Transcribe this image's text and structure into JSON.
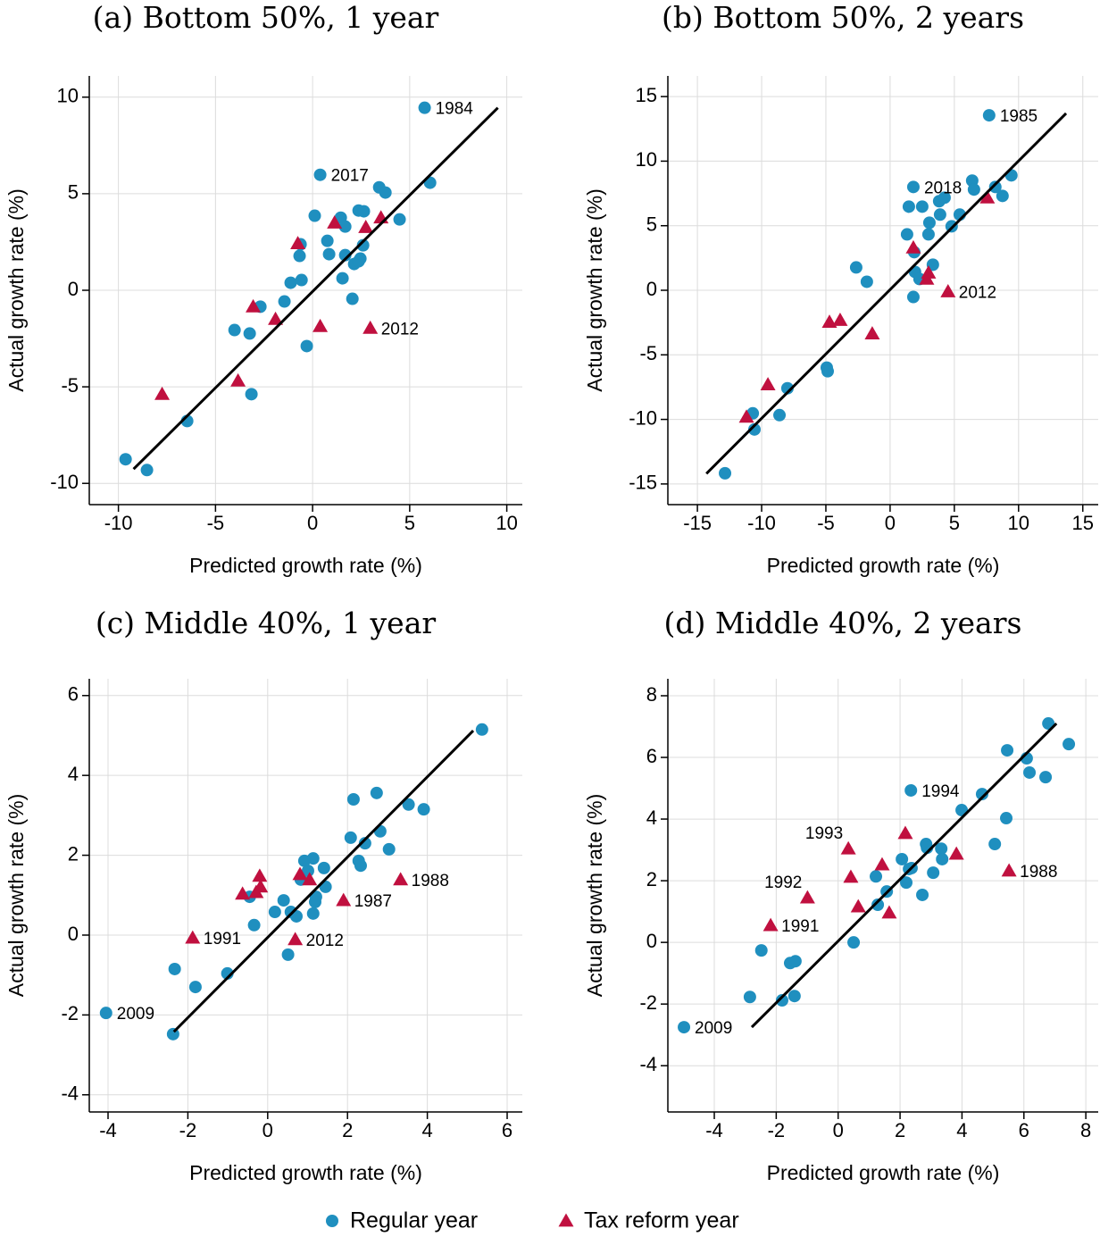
{
  "chart_data": [
    {
      "type": "scatter",
      "title": "(a) Bottom 50%, 1 year",
      "x_label": "Predicted growth rate (%)",
      "y_label": "Actual growth rate (%)",
      "xlim": [
        -11.5,
        10.8
      ],
      "ylim": [
        -11.1,
        11.1
      ],
      "xticks": [
        -10,
        -5,
        0,
        5,
        10
      ],
      "yticks": [
        -10,
        -5,
        0,
        5,
        10
      ],
      "grid": true,
      "series": [
        {
          "color": "#1f8fbf",
          "marker": "circle",
          "x": [
            5.77,
            0.39,
            6.05,
            3.43,
            3.75,
            4.48,
            0.11,
            1.45,
            1.68,
            2.37,
            2.64,
            2.6,
            0.76,
            0.85,
            1.68,
            2.46,
            2.14,
            2.37,
            -0.67,
            -0.62,
            -1.13,
            -0.57,
            1.54,
            2.05,
            -1.45,
            -2.69,
            -4.02,
            -3.24,
            -0.3,
            -3.15,
            -6.46,
            -9.63,
            -8.53
          ],
          "values": [
            9.45,
            5.98,
            5.57,
            5.33,
            5.06,
            3.67,
            3.86,
            3.76,
            3.3,
            4.13,
            4.09,
            2.33,
            2.56,
            1.87,
            1.82,
            1.64,
            1.36,
            1.5,
            1.78,
            2.38,
            0.39,
            0.53,
            0.62,
            -0.44,
            -0.58,
            -0.85,
            -2.06,
            -2.24,
            -2.89,
            -5.38,
            -6.77,
            -8.75,
            -9.31
          ]
        },
        {
          "color": "#c0103f",
          "marker": "triangle",
          "x": [
            -7.75,
            -3.84,
            -3.06,
            -1.91,
            -0.76,
            0.39,
            1.13,
            2.74,
            3.52,
            2.97
          ],
          "values": [
            -5.38,
            -4.69,
            -0.85,
            -1.5,
            2.42,
            -1.87,
            3.49,
            3.26,
            3.76,
            -1.96
          ]
        }
      ],
      "line": {
        "x": [
          -9.22,
          9.54
        ],
        "values": [
          -9.26,
          9.45
        ]
      },
      "annotations": [
        {
          "text": "1984",
          "x": 5.77,
          "y": 9.45
        },
        {
          "text": "2017",
          "x": 0.39,
          "y": 5.98
        },
        {
          "text": "2012",
          "x": 2.97,
          "y": -1.96
        }
      ]
    },
    {
      "type": "scatter",
      "title": "(b) Bottom 50%, 2 years",
      "x_label": "Predicted growth rate (%)",
      "y_label": "Actual growth rate (%)",
      "xlim": [
        -17.3,
        16.2
      ],
      "ylim": [
        -16.6,
        16.6
      ],
      "xticks": [
        -15,
        -10,
        -5,
        0,
        5,
        10,
        15
      ],
      "yticks": [
        -15,
        -10,
        -5,
        0,
        5,
        10,
        15
      ],
      "grid": true,
      "series": [
        {
          "color": "#1f8fbf",
          "marker": "circle",
          "x": [
            7.71,
            9.44,
            8.75,
            8.19,
            6.39,
            6.53,
            5.42,
            4.79,
            2.99,
            3.06,
            3.89,
            3.82,
            4.24,
            2.5,
            1.46,
            1.81,
            1.32,
            1.88,
            3.33,
            1.94,
            2.29,
            1.81,
            -2.64,
            -1.81,
            -4.93,
            -4.86,
            -7.99,
            -8.61,
            -10.69,
            -10.56,
            -12.85
          ],
          "values": [
            13.55,
            8.9,
            7.31,
            8.0,
            8.49,
            7.8,
            5.86,
            4.95,
            4.33,
            5.23,
            5.86,
            6.9,
            7.17,
            6.48,
            6.48,
            8.0,
            4.33,
            2.95,
            1.98,
            1.42,
            0.87,
            -0.52,
            1.77,
            0.66,
            -5.99,
            -6.27,
            -7.59,
            -9.67,
            -9.53,
            -10.78,
            -14.17
          ]
        },
        {
          "color": "#c0103f",
          "marker": "triangle",
          "x": [
            -11.18,
            -9.51,
            -4.72,
            -3.89,
            -1.39,
            1.81,
            2.85,
            2.99,
            4.51,
            7.57
          ],
          "values": [
            -9.81,
            -7.31,
            -2.46,
            -2.32,
            -3.36,
            3.29,
            0.87,
            1.35,
            -0.1,
            7.17
          ]
        }
      ],
      "line": {
        "x": [
          -14.3,
          13.7
        ],
        "values": [
          -14.2,
          13.7
        ]
      },
      "annotations": [
        {
          "text": "1985",
          "x": 7.71,
          "y": 13.55
        },
        {
          "text": "2018",
          "x": 1.81,
          "y": 8.0
        },
        {
          "text": "2012",
          "x": 4.51,
          "y": -0.1
        }
      ]
    },
    {
      "type": "scatter",
      "title": "(c) Middle 40%, 1 year",
      "x_label": "Predicted growth rate (%)",
      "y_label": "Actual growth rate (%)",
      "xlim": [
        -4.47,
        6.38
      ],
      "ylim": [
        -4.43,
        6.42
      ],
      "xticks": [
        -4,
        -2,
        0,
        2,
        4,
        6
      ],
      "yticks": [
        -4,
        -2,
        0,
        2,
        4,
        6
      ],
      "grid": true,
      "series": [
        {
          "color": "#1f8fbf",
          "marker": "circle",
          "x": [
            5.37,
            3.53,
            3.91,
            2.73,
            2.15,
            2.82,
            2.08,
            2.44,
            3.04,
            2.28,
            2.33,
            1.41,
            1.14,
            0.92,
            1.01,
            0.83,
            1.45,
            1.21,
            1.19,
            0.4,
            0.18,
            0.58,
            0.72,
            1.14,
            -0.45,
            -0.34,
            0.51,
            -1.01,
            -1.81,
            -2.33,
            -2.37,
            -4.05
          ],
          "values": [
            5.15,
            3.27,
            3.15,
            3.56,
            3.4,
            2.6,
            2.44,
            2.3,
            2.15,
            1.86,
            1.74,
            1.68,
            1.92,
            1.86,
            1.61,
            1.39,
            1.21,
            0.96,
            0.83,
            0.87,
            0.58,
            0.58,
            0.47,
            0.54,
            0.96,
            0.25,
            -0.49,
            -0.96,
            -1.3,
            -0.85,
            -2.48,
            -1.95
          ]
        },
        {
          "color": "#c0103f",
          "marker": "triangle",
          "x": [
            -1.88,
            -0.63,
            -0.29,
            -0.2,
            -0.18,
            0.69,
            0.81,
            1.05,
            1.9,
            3.33
          ],
          "values": [
            -0.07,
            1.03,
            1.07,
            1.48,
            1.21,
            -0.11,
            1.52,
            1.39,
            0.87,
            1.39
          ]
        }
      ],
      "line": {
        "x": [
          -2.35,
          5.15
        ],
        "values": [
          -2.42,
          5.12
        ]
      },
      "annotations": [
        {
          "text": "2009",
          "x": -4.05,
          "y": -1.95
        },
        {
          "text": "1991",
          "x": -1.88,
          "y": -0.07
        },
        {
          "text": "2012",
          "x": 0.69,
          "y": -0.11
        },
        {
          "text": "1987",
          "x": 1.9,
          "y": 0.87
        },
        {
          "text": "1988",
          "x": 3.33,
          "y": 1.39
        }
      ]
    },
    {
      "type": "scatter",
      "title": "(d) Middle 40%, 2 years",
      "x_label": "Predicted growth rate (%)",
      "y_label": "Actual growth rate (%)",
      "xlim": [
        -5.5,
        8.4
      ],
      "ylim": [
        -5.5,
        8.55
      ],
      "xticks": [
        -4,
        -2,
        0,
        2,
        4,
        6,
        8
      ],
      "yticks": [
        -4,
        -2,
        0,
        2,
        4,
        6,
        8
      ],
      "grid": true,
      "series": [
        {
          "color": "#1f8fbf",
          "marker": "circle",
          "x": [
            6.79,
            7.45,
            5.46,
            6.09,
            6.18,
            6.7,
            4.65,
            5.43,
            3.99,
            5.06,
            2.35,
            2.84,
            2.87,
            3.33,
            3.36,
            2.06,
            2.29,
            2.37,
            3.07,
            1.22,
            2.2,
            2.72,
            1.57,
            1.28,
            0.5,
            -2.48,
            -1.55,
            -1.38,
            -2.85,
            -1.81,
            -1.41,
            -4.98
          ],
          "values": [
            7.1,
            6.43,
            6.23,
            5.97,
            5.51,
            5.36,
            4.81,
            4.03,
            4.29,
            3.19,
            4.93,
            3.19,
            3.07,
            3.04,
            2.7,
            2.7,
            2.38,
            2.41,
            2.26,
            2.14,
            1.94,
            1.54,
            1.65,
            1.22,
            0,
            -0.26,
            -0.67,
            -0.61,
            -1.77,
            -1.88,
            -1.74,
            -2.75
          ]
        },
        {
          "color": "#c0103f",
          "marker": "triangle",
          "x": [
            -2.18,
            -0.99,
            0.33,
            0.41,
            0.65,
            1.42,
            1.65,
            2.17,
            3.82,
            5.52
          ],
          "values": [
            0.55,
            1.45,
            3.04,
            2.12,
            1.16,
            2.52,
            0.96,
            3.54,
            2.87,
            2.32
          ]
        }
      ],
      "line": {
        "x": [
          -2.79,
          7.05
        ],
        "values": [
          -2.75,
          7.1
        ]
      },
      "annotations": [
        {
          "text": "1994",
          "x": 2.35,
          "y": 4.93
        },
        {
          "text": "1993",
          "x": 0.33,
          "y": 3.04,
          "position": "upper-left"
        },
        {
          "text": "1992",
          "x": -0.99,
          "y": 1.45,
          "position": "upper-left"
        },
        {
          "text": "1991",
          "x": -2.18,
          "y": 0.55
        },
        {
          "text": "1988",
          "x": 5.52,
          "y": 2.32
        },
        {
          "text": "2009",
          "x": -4.98,
          "y": -2.75
        }
      ]
    }
  ],
  "legend": {
    "position": "bottom",
    "entries": [
      {
        "name": "Regular year",
        "color": "#1f8fbf",
        "marker": "circle"
      },
      {
        "name": "Tax reform year",
        "color": "#c0103f",
        "marker": "triangle"
      }
    ]
  }
}
